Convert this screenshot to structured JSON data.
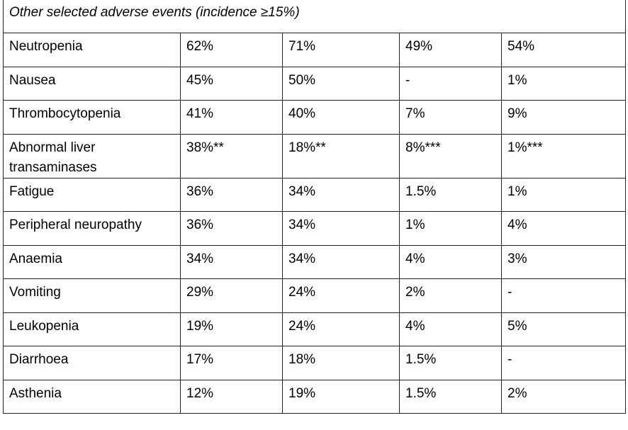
{
  "header": {
    "title": "Other selected adverse events (incidence ≥15%)"
  },
  "table": {
    "rows": [
      [
        "Neutropenia",
        "62%",
        "71%",
        "49%",
        "54%"
      ],
      [
        "Nausea",
        "45%",
        "50%",
        "-",
        "1%"
      ],
      [
        "Thrombocytopenia",
        "41%",
        "40%",
        "7%",
        "9%"
      ],
      [
        "Abnormal liver transaminases",
        "38%**",
        "18%**",
        "8%***",
        "1%***"
      ],
      [
        "Fatigue",
        "36%",
        "34%",
        "1.5%",
        "1%"
      ],
      [
        "Peripheral neuropathy",
        "36%",
        "34%",
        "1%",
        "4%"
      ],
      [
        "Anaemia",
        "34%",
        "34%",
        "4%",
        "3%"
      ],
      [
        "Vomiting",
        "29%",
        "24%",
        "2%",
        "-"
      ],
      [
        "Leukopenia",
        "19%",
        "24%",
        "4%",
        "5%"
      ],
      [
        "Diarrhoea",
        "17%",
        "18%",
        "1.5%",
        "-"
      ],
      [
        "Asthenia",
        "12%",
        "19%",
        "1.5%",
        "2%"
      ]
    ]
  }
}
